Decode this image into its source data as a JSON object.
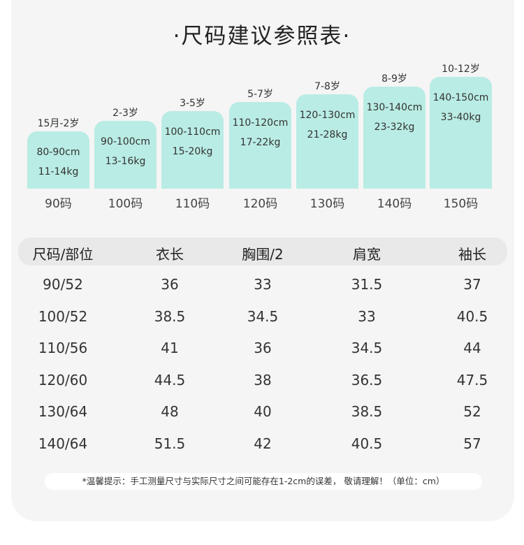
{
  "title": "·尺码建议参照表·",
  "bars": [
    {
      "age": "15月-2岁",
      "height": "80-90cm",
      "weight": "11-14kg",
      "size": "90码"
    },
    {
      "age": "2-3岁",
      "height": "90-100cm",
      "weight": "13-16kg",
      "size": "100码"
    },
    {
      "age": "3-5岁",
      "height": "100-110cm",
      "weight": "15-20kg",
      "size": "110码"
    },
    {
      "age": "5-7岁",
      "height": "110-120cm",
      "weight": "17-22kg",
      "size": "120码"
    },
    {
      "age": "7-8岁",
      "height": "120-130cm",
      "weight": "21-28kg",
      "size": "130码"
    },
    {
      "age": "8-9岁",
      "height": "130-140cm",
      "weight": "23-32kg",
      "size": "140码"
    },
    {
      "age": "10-12岁",
      "height": "140-150cm",
      "weight": "33-40kg",
      "size": "150码"
    }
  ],
  "table": {
    "headers": [
      "尺码/部位",
      "衣长",
      "胸围/2",
      "肩宽",
      "袖长"
    ],
    "rows": [
      [
        "90/52",
        "36",
        "33",
        "31.5",
        "37"
      ],
      [
        "100/52",
        "38.5",
        "34.5",
        "33",
        "40.5"
      ],
      [
        "110/56",
        "41",
        "36",
        "34.5",
        "44"
      ],
      [
        "120/60",
        "44.5",
        "38",
        "36.5",
        "47.5"
      ],
      [
        "130/64",
        "48",
        "40",
        "38.5",
        "52"
      ],
      [
        "140/64",
        "51.5",
        "42",
        "40.5",
        "57"
      ]
    ]
  },
  "note": "*温馨提示：手工测量尺寸与实际尺寸之间可能存在1-2cm的误差， 敬请理解！（单位：cm）",
  "colors": {
    "bar": "#b9ece4",
    "card": "#f5f5f5",
    "header_row": "#e9e9e9"
  }
}
